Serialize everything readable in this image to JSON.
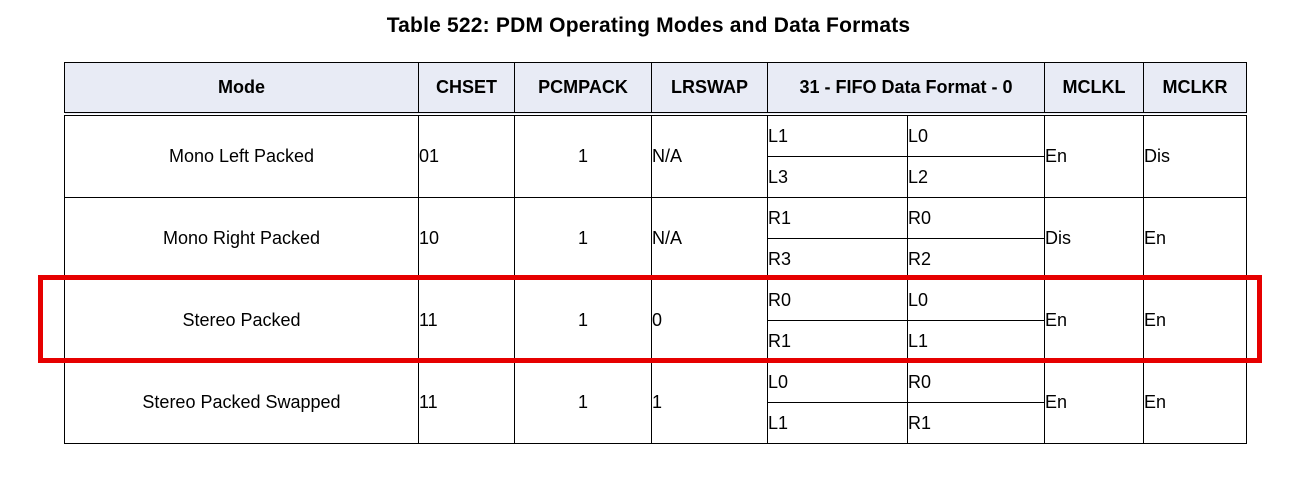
{
  "caption": "Table 522: PDM Operating Modes and Data Formats",
  "headers": {
    "mode": "Mode",
    "chset": "CHSET",
    "pcmpack": "PCMPACK",
    "lrswap": "LRSWAP",
    "fifo": "31 - FIFO Data Format - 0",
    "mclkl": "MCLKL",
    "mclkr": "MCLKR"
  },
  "rows": [
    {
      "mode": "Mono Left Packed",
      "chset": "01",
      "pcmpack": "1",
      "lrswap": "N/A",
      "fifo": [
        [
          "L1",
          "L0"
        ],
        [
          "L3",
          "L2"
        ]
      ],
      "mclkl": "En",
      "mclkr": "Dis"
    },
    {
      "mode": "Mono Right Packed",
      "chset": "10",
      "pcmpack": "1",
      "lrswap": "N/A",
      "fifo": [
        [
          "R1",
          "R0"
        ],
        [
          "R3",
          "R2"
        ]
      ],
      "mclkl": "Dis",
      "mclkr": "En"
    },
    {
      "mode": "Stereo Packed",
      "chset": "11",
      "pcmpack": "1",
      "lrswap": "0",
      "fifo": [
        [
          "R0",
          "L0"
        ],
        [
          "R1",
          "L1"
        ]
      ],
      "mclkl": "En",
      "mclkr": "En"
    },
    {
      "mode": "Stereo Packed Swapped",
      "chset": "11",
      "pcmpack": "1",
      "lrswap": "1",
      "fifo": [
        [
          "L0",
          "R0"
        ],
        [
          "L1",
          "R1"
        ]
      ],
      "mclkl": "En",
      "mclkr": "En"
    }
  ],
  "highlight_color": "#e60000",
  "header_bg": "#e8ebf5"
}
